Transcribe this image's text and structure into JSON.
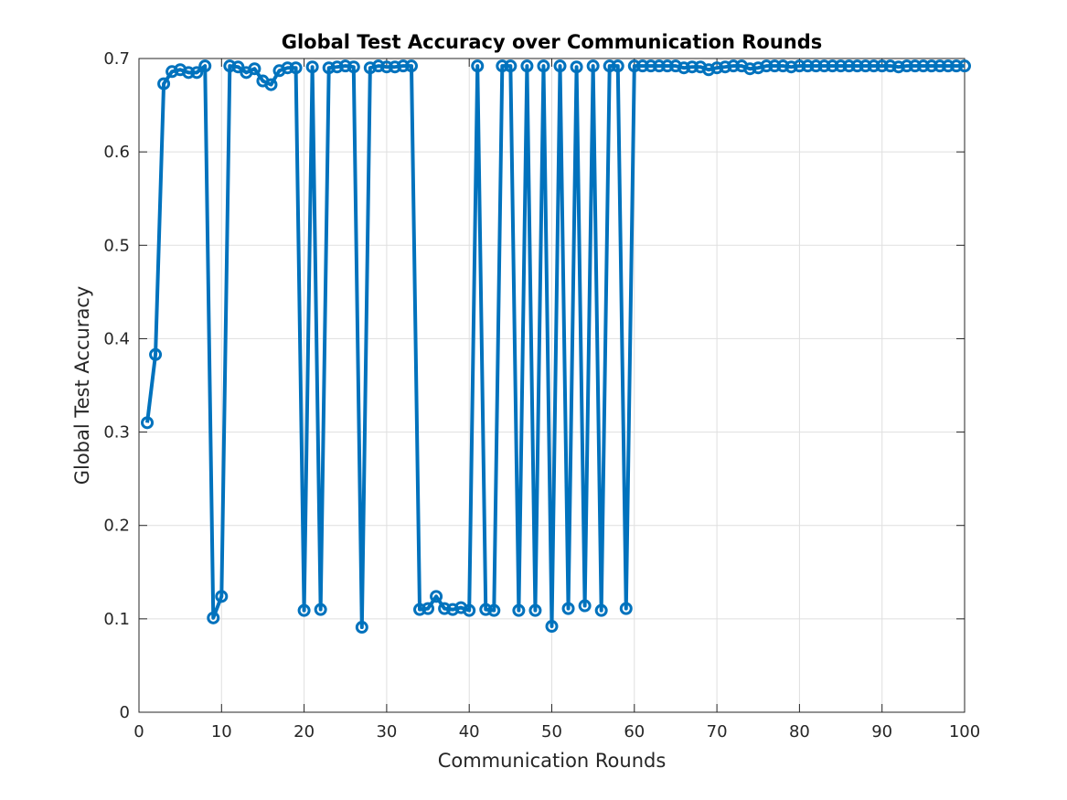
{
  "chart_data": {
    "type": "line",
    "title": "Global Test Accuracy over Communication Rounds",
    "xlabel": "Communication Rounds",
    "ylabel": "Global Test Accuracy",
    "xlim": [
      0,
      100
    ],
    "ylim": [
      0,
      0.7
    ],
    "xticks": [
      0,
      10,
      20,
      30,
      40,
      50,
      60,
      70,
      80,
      90,
      100
    ],
    "yticks": [
      0,
      0.1,
      0.2,
      0.3,
      0.4,
      0.5,
      0.6,
      0.7
    ],
    "xtick_labels": [
      "0",
      "10",
      "20",
      "30",
      "40",
      "50",
      "60",
      "70",
      "80",
      "90",
      "100"
    ],
    "ytick_labels": [
      "0",
      "0.1",
      "0.2",
      "0.3",
      "0.4",
      "0.5",
      "0.6",
      "0.7"
    ],
    "grid": true,
    "marker": "circle",
    "series_color": "#0072BD",
    "series": [
      {
        "x": [
          1,
          2,
          3,
          4,
          5,
          6,
          7,
          8,
          9,
          10,
          11,
          12,
          13,
          14,
          15,
          16,
          17,
          18,
          19,
          20,
          21,
          22,
          23,
          24,
          25,
          26,
          27,
          28,
          29,
          30,
          31,
          32,
          33,
          34,
          35,
          36,
          37,
          38,
          39,
          40,
          41,
          42,
          43,
          44,
          45,
          46,
          47,
          48,
          49,
          50,
          51,
          52,
          53,
          54,
          55,
          56,
          57,
          58,
          59,
          60,
          61,
          62,
          63,
          64,
          65,
          66,
          67,
          68,
          69,
          70,
          71,
          72,
          73,
          74,
          75,
          76,
          77,
          78,
          79,
          80,
          81,
          82,
          83,
          84,
          85,
          86,
          87,
          88,
          89,
          90,
          91,
          92,
          93,
          94,
          95,
          96,
          97,
          98,
          99,
          100
        ],
        "values": [
          0.31,
          0.383,
          0.673,
          0.686,
          0.688,
          0.685,
          0.685,
          0.692,
          0.101,
          0.124,
          0.692,
          0.691,
          0.685,
          0.689,
          0.676,
          0.672,
          0.687,
          0.69,
          0.69,
          0.109,
          0.691,
          0.11,
          0.69,
          0.691,
          0.692,
          0.691,
          0.091,
          0.69,
          0.692,
          0.691,
          0.691,
          0.692,
          0.692,
          0.11,
          0.111,
          0.124,
          0.111,
          0.11,
          0.112,
          0.109,
          0.692,
          0.11,
          0.109,
          0.692,
          0.692,
          0.109,
          0.692,
          0.109,
          0.692,
          0.092,
          0.692,
          0.111,
          0.691,
          0.114,
          0.692,
          0.109,
          0.692,
          0.692,
          0.111,
          0.692,
          0.692,
          0.692,
          0.692,
          0.692,
          0.692,
          0.69,
          0.691,
          0.691,
          0.688,
          0.69,
          0.691,
          0.692,
          0.692,
          0.689,
          0.69,
          0.692,
          0.692,
          0.692,
          0.691,
          0.692,
          0.692,
          0.692,
          0.692,
          0.692,
          0.692,
          0.692,
          0.692,
          0.692,
          0.692,
          0.692,
          0.692,
          0.691,
          0.692,
          0.692,
          0.692,
          0.692,
          0.692,
          0.692,
          0.692,
          0.692
        ]
      }
    ]
  }
}
